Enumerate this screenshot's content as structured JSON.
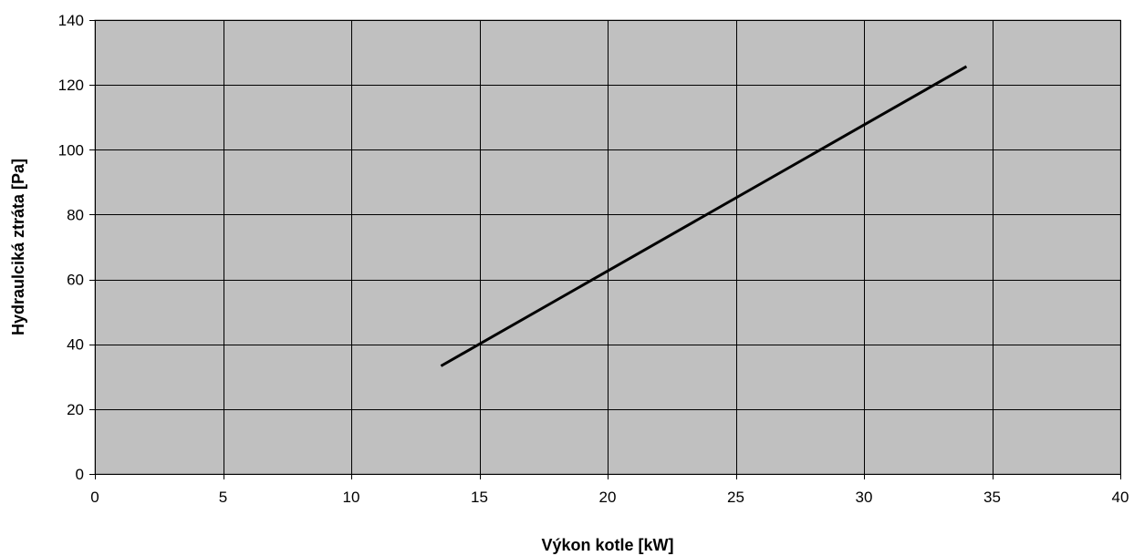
{
  "chart_data": {
    "type": "line",
    "title": "",
    "xlabel": "Výkon kotle [kW]",
    "ylabel": "Hydraulciká ztráta [Pa]",
    "xlim": [
      0,
      40
    ],
    "ylim": [
      0,
      140
    ],
    "xticks": [
      0,
      5,
      10,
      15,
      20,
      25,
      30,
      35,
      40
    ],
    "yticks": [
      0,
      20,
      40,
      60,
      80,
      100,
      120,
      140
    ],
    "grid": true,
    "legend": "none",
    "plot_background": "#c0c0c0",
    "series": [
      {
        "color": "#000000",
        "x": [
          13.5,
          34
        ],
        "y": [
          33.3,
          125.7
        ]
      }
    ]
  }
}
